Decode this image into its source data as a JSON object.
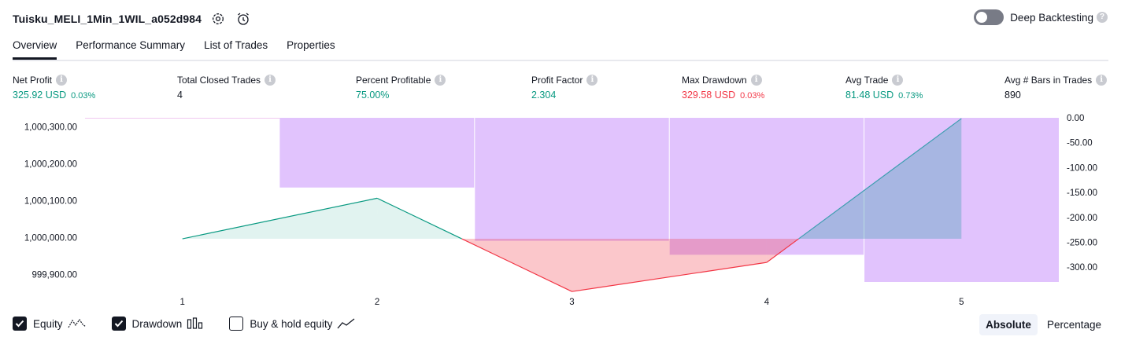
{
  "header": {
    "strategy_name": "Tuisku_MELI_1Min_1WIL_a052d984",
    "deep_backtesting_label": "Deep Backtesting"
  },
  "tabs": [
    {
      "label": "Overview",
      "active": true
    },
    {
      "label": "Performance Summary",
      "active": false
    },
    {
      "label": "List of Trades",
      "active": false
    },
    {
      "label": "Properties",
      "active": false
    }
  ],
  "metrics": [
    {
      "label": "Net Profit",
      "value": "325.92 USD",
      "pct": "0.03%",
      "color": "#089981"
    },
    {
      "label": "Total Closed Trades",
      "value": "4",
      "pct": "",
      "color": "#131722"
    },
    {
      "label": "Percent Profitable",
      "value": "75.00%",
      "pct": "",
      "color": "#089981"
    },
    {
      "label": "Profit Factor",
      "value": "2.304",
      "pct": "",
      "color": "#089981"
    },
    {
      "label": "Max Drawdown",
      "value": "329.58 USD",
      "pct": "0.03%",
      "color": "#f23645"
    },
    {
      "label": "Avg Trade",
      "value": "81.48 USD",
      "pct": "0.73%",
      "color": "#089981"
    },
    {
      "label": "Avg # Bars in Trades",
      "value": "890",
      "pct": "",
      "color": "#131722"
    }
  ],
  "chart_data": {
    "type": "line",
    "x_categories": [
      "1",
      "2",
      "3",
      "4",
      "5"
    ],
    "left_axis": {
      "ticks": [
        "1,000,300.00",
        "1,000,200.00",
        "1,000,100.00",
        "1,000,000.00",
        "999,900.00"
      ],
      "range": [
        999880,
        1000325
      ]
    },
    "right_axis": {
      "ticks": [
        "0.00",
        "-50.00",
        "-100.00",
        "-150.00",
        "-200.00",
        "-250.00",
        "-300.00"
      ],
      "range": [
        -329.6,
        0
      ]
    },
    "series": [
      {
        "name": "Equity",
        "x": [
          1,
          2,
          3,
          4,
          5
        ],
        "values": [
          999997,
          1000107,
          999854,
          999933,
          1000323
        ]
      },
      {
        "name": "Drawdown",
        "x": [
          1,
          2,
          3,
          4,
          5
        ],
        "values": [
          0,
          -140,
          -247,
          -275,
          -329.6
        ]
      }
    ],
    "colors": {
      "equity_up": "#089981",
      "equity_down": "#f23645",
      "equity_final": "#3c9eb0",
      "drawdown": "#e1c3fd"
    },
    "grid": false
  },
  "legend": [
    {
      "label": "Equity",
      "checked": true,
      "icon": "equity-line-icon"
    },
    {
      "label": "Drawdown",
      "checked": true,
      "icon": "drawdown-bars-icon"
    },
    {
      "label": "Buy & hold equity",
      "checked": false,
      "icon": "buy-hold-line-icon"
    }
  ],
  "mode": {
    "absolute": "Absolute",
    "percentage": "Percentage",
    "selected": "absolute"
  }
}
